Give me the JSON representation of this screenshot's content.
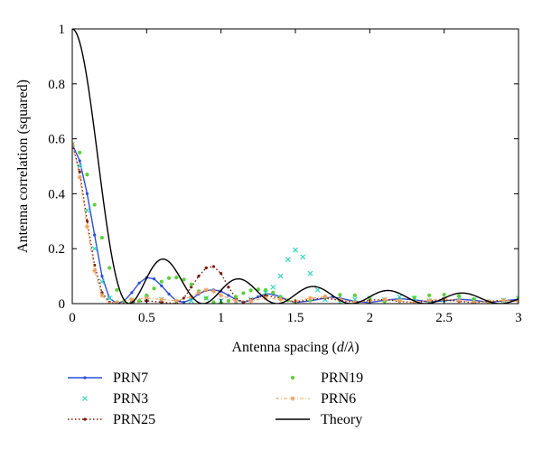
{
  "chart_data": {
    "type": "scatter",
    "title": "",
    "xlabel_prefix": "Antenna spacing (",
    "xlabel_var": "d",
    "xlabel_sep": "/",
    "xlabel_lambda": "λ",
    "xlabel_suffix": ")",
    "ylabel": "Antenna correlation (squared)",
    "xlim": [
      0,
      3
    ],
    "ylim": [
      0,
      1
    ],
    "xticks": [
      "0",
      "0.5",
      "1",
      "1.5",
      "2",
      "2.5",
      "3"
    ],
    "yticks": [
      "0",
      "0.2",
      "0.4",
      "0.6",
      "0.8",
      "1"
    ],
    "grid": false,
    "legend_placement": "bottom",
    "series": [
      {
        "name": "PRN7",
        "color": "#2b4fd6",
        "style": "solid-dot",
        "points": [
          [
            0,
            0.58
          ],
          [
            0.05,
            0.52
          ],
          [
            0.1,
            0.4
          ],
          [
            0.15,
            0.25
          ],
          [
            0.2,
            0.1
          ],
          [
            0.25,
            0.02
          ],
          [
            0.3,
            0.0
          ],
          [
            0.35,
            0.01
          ],
          [
            0.4,
            0.04
          ],
          [
            0.45,
            0.075
          ],
          [
            0.5,
            0.095
          ],
          [
            0.55,
            0.09
          ],
          [
            0.6,
            0.065
          ],
          [
            0.65,
            0.035
          ],
          [
            0.7,
            0.01
          ],
          [
            0.75,
            0.005
          ],
          [
            0.8,
            0.015
          ],
          [
            0.85,
            0.035
          ],
          [
            0.9,
            0.048
          ],
          [
            0.95,
            0.05
          ],
          [
            1.0,
            0.045
          ],
          [
            1.05,
            0.03
          ],
          [
            1.1,
            0.015
          ],
          [
            1.15,
            0.005
          ],
          [
            1.2,
            0.012
          ],
          [
            1.25,
            0.025
          ],
          [
            1.3,
            0.036
          ],
          [
            1.35,
            0.034
          ],
          [
            1.4,
            0.024
          ],
          [
            1.45,
            0.012
          ],
          [
            1.5,
            0.004
          ],
          [
            1.6,
            0.01
          ],
          [
            1.7,
            0.02
          ],
          [
            1.75,
            0.024
          ],
          [
            1.8,
            0.02
          ],
          [
            1.9,
            0.008
          ],
          [
            2.0,
            0.004
          ],
          [
            2.1,
            0.012
          ],
          [
            2.2,
            0.018
          ],
          [
            2.3,
            0.014
          ],
          [
            2.4,
            0.006
          ],
          [
            2.5,
            0.01
          ],
          [
            2.6,
            0.016
          ],
          [
            2.7,
            0.012
          ],
          [
            2.8,
            0.005
          ],
          [
            2.9,
            0.01
          ],
          [
            3.0,
            0.016
          ]
        ]
      },
      {
        "name": "PRN3",
        "color": "#33d9c0",
        "style": "cross",
        "points": [
          [
            0,
            0.58
          ],
          [
            0.05,
            0.5
          ],
          [
            0.1,
            0.34
          ],
          [
            0.15,
            0.2
          ],
          [
            0.2,
            0.08
          ],
          [
            0.25,
            0.02
          ],
          [
            0.3,
            0.0
          ],
          [
            0.4,
            0.01
          ],
          [
            0.5,
            0.02
          ],
          [
            0.6,
            0.015
          ],
          [
            0.7,
            0.005
          ],
          [
            0.8,
            0.01
          ],
          [
            0.9,
            0.02
          ],
          [
            1.0,
            0.01
          ],
          [
            1.1,
            0.005
          ],
          [
            1.2,
            0.015
          ],
          [
            1.3,
            0.04
          ],
          [
            1.35,
            0.06
          ],
          [
            1.4,
            0.1
          ],
          [
            1.45,
            0.16
          ],
          [
            1.5,
            0.195
          ],
          [
            1.55,
            0.17
          ],
          [
            1.6,
            0.11
          ],
          [
            1.65,
            0.05
          ],
          [
            1.7,
            0.015
          ],
          [
            1.8,
            0.005
          ],
          [
            1.9,
            0.015
          ],
          [
            2.0,
            0.02
          ],
          [
            2.1,
            0.015
          ],
          [
            2.2,
            0.025
          ],
          [
            2.3,
            0.02
          ],
          [
            2.4,
            0.01
          ],
          [
            2.5,
            0.015
          ],
          [
            2.6,
            0.02
          ],
          [
            2.7,
            0.012
          ],
          [
            2.8,
            0.006
          ],
          [
            2.9,
            0.012
          ],
          [
            3.0,
            0.02
          ]
        ]
      },
      {
        "name": "PRN25",
        "color": "#7a1a0a",
        "style": "dotted",
        "points": [
          [
            0,
            0.58
          ],
          [
            0.05,
            0.48
          ],
          [
            0.1,
            0.3
          ],
          [
            0.15,
            0.14
          ],
          [
            0.2,
            0.04
          ],
          [
            0.25,
            0.005
          ],
          [
            0.3,
            0.0
          ],
          [
            0.4,
            0.005
          ],
          [
            0.5,
            0.01
          ],
          [
            0.6,
            0.005
          ],
          [
            0.7,
            0.0
          ],
          [
            0.75,
            0.02
          ],
          [
            0.8,
            0.06
          ],
          [
            0.85,
            0.1
          ],
          [
            0.9,
            0.13
          ],
          [
            0.95,
            0.135
          ],
          [
            1.0,
            0.11
          ],
          [
            1.05,
            0.06
          ],
          [
            1.1,
            0.02
          ],
          [
            1.15,
            0.005
          ],
          [
            1.2,
            0.015
          ],
          [
            1.3,
            0.03
          ],
          [
            1.4,
            0.02
          ],
          [
            1.5,
            0.005
          ],
          [
            1.6,
            0.015
          ],
          [
            1.7,
            0.02
          ],
          [
            1.8,
            0.012
          ],
          [
            1.9,
            0.005
          ],
          [
            2.0,
            0.012
          ],
          [
            2.1,
            0.015
          ],
          [
            2.2,
            0.008
          ],
          [
            2.3,
            0.004
          ],
          [
            2.4,
            0.01
          ],
          [
            2.5,
            0.013
          ],
          [
            2.6,
            0.008
          ],
          [
            2.7,
            0.004
          ],
          [
            2.8,
            0.008
          ],
          [
            2.9,
            0.012
          ],
          [
            3.0,
            0.01
          ]
        ]
      },
      {
        "name": "PRN19",
        "color": "#5ad13a",
        "style": "dot",
        "points": [
          [
            0,
            0.58
          ],
          [
            0.05,
            0.55
          ],
          [
            0.1,
            0.47
          ],
          [
            0.15,
            0.36
          ],
          [
            0.2,
            0.24
          ],
          [
            0.25,
            0.13
          ],
          [
            0.3,
            0.05
          ],
          [
            0.35,
            0.01
          ],
          [
            0.4,
            0.0
          ],
          [
            0.45,
            0.01
          ],
          [
            0.5,
            0.03
          ],
          [
            0.55,
            0.055
          ],
          [
            0.6,
            0.08
          ],
          [
            0.65,
            0.093
          ],
          [
            0.7,
            0.095
          ],
          [
            0.75,
            0.088
          ],
          [
            0.8,
            0.07
          ],
          [
            0.85,
            0.045
          ],
          [
            0.9,
            0.02
          ],
          [
            0.95,
            0.005
          ],
          [
            1.0,
            0.002
          ],
          [
            1.05,
            0.01
          ],
          [
            1.1,
            0.025
          ],
          [
            1.15,
            0.038
          ],
          [
            1.2,
            0.048
          ],
          [
            1.25,
            0.052
          ],
          [
            1.3,
            0.05
          ],
          [
            1.35,
            0.04
          ],
          [
            1.4,
            0.025
          ],
          [
            1.45,
            0.012
          ],
          [
            1.5,
            0.004
          ],
          [
            1.6,
            0.012
          ],
          [
            1.7,
            0.025
          ],
          [
            1.8,
            0.032
          ],
          [
            1.9,
            0.03
          ],
          [
            2.0,
            0.018
          ],
          [
            2.1,
            0.008
          ],
          [
            2.2,
            0.012
          ],
          [
            2.3,
            0.022
          ],
          [
            2.4,
            0.03
          ],
          [
            2.5,
            0.033
          ],
          [
            2.6,
            0.028
          ],
          [
            2.7,
            0.016
          ],
          [
            2.8,
            0.008
          ],
          [
            2.9,
            0.012
          ],
          [
            3.0,
            0.02
          ]
        ]
      },
      {
        "name": "PRN6",
        "color": "#f0a060",
        "style": "dashdot-star",
        "points": [
          [
            0,
            0.58
          ],
          [
            0.05,
            0.46
          ],
          [
            0.1,
            0.28
          ],
          [
            0.15,
            0.12
          ],
          [
            0.2,
            0.03
          ],
          [
            0.25,
            0.0
          ],
          [
            0.3,
            0.005
          ],
          [
            0.4,
            0.015
          ],
          [
            0.5,
            0.02
          ],
          [
            0.6,
            0.015
          ],
          [
            0.7,
            0.01
          ],
          [
            0.8,
            0.025
          ],
          [
            0.85,
            0.04
          ],
          [
            0.9,
            0.05
          ],
          [
            0.95,
            0.045
          ],
          [
            1.0,
            0.03
          ],
          [
            1.1,
            0.01
          ],
          [
            1.2,
            0.01
          ],
          [
            1.3,
            0.02
          ],
          [
            1.4,
            0.015
          ],
          [
            1.5,
            0.008
          ],
          [
            1.6,
            0.02
          ],
          [
            1.7,
            0.025
          ],
          [
            1.8,
            0.015
          ],
          [
            1.9,
            0.005
          ],
          [
            2.0,
            0.01
          ],
          [
            2.1,
            0.015
          ],
          [
            2.2,
            0.01
          ],
          [
            2.3,
            0.005
          ],
          [
            2.4,
            0.012
          ],
          [
            2.5,
            0.018
          ],
          [
            2.6,
            0.012
          ],
          [
            2.7,
            0.005
          ],
          [
            2.8,
            0.008
          ],
          [
            2.9,
            0.012
          ],
          [
            3.0,
            0.008
          ]
        ]
      },
      {
        "name": "Theory",
        "color": "#000000",
        "style": "solid",
        "function": "bessel_j0_squared"
      }
    ]
  }
}
